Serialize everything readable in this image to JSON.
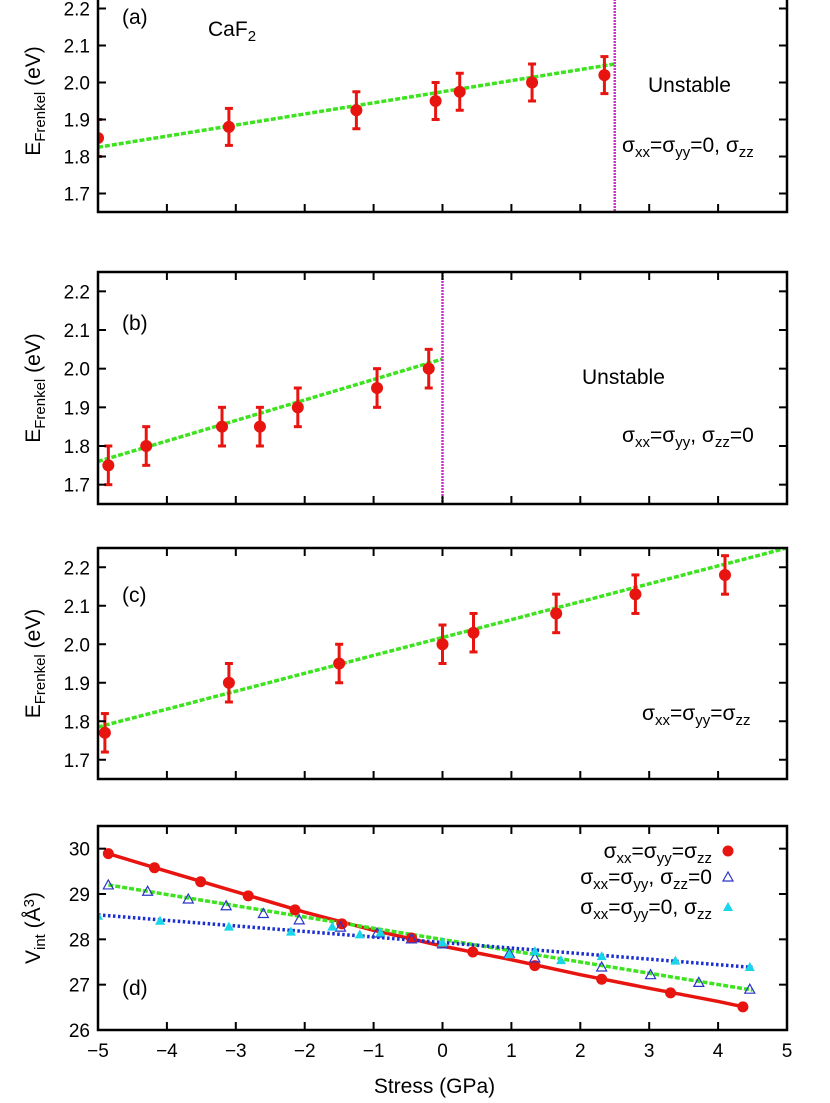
{
  "chart_data": [
    {
      "type": "scatter",
      "panel_label": "(a)",
      "material": {
        "base": "CaF",
        "sub": "2"
      },
      "ylabel": {
        "base": "E",
        "sub": "Frenkel",
        "tail": " (eV)"
      },
      "ylim": [
        1.65,
        2.25
      ],
      "yticks": [
        "1.7",
        "1.8",
        "1.9",
        "2.0",
        "2.1",
        "2.2"
      ],
      "xlim": [
        -5,
        5
      ],
      "grid": false,
      "points": [
        {
          "x": -5.0,
          "y": 1.85,
          "err": 0.05
        },
        {
          "x": -3.1,
          "y": 1.88,
          "err": 0.05
        },
        {
          "x": -1.25,
          "y": 1.925,
          "err": 0.05
        },
        {
          "x": -0.1,
          "y": 1.95,
          "err": 0.05
        },
        {
          "x": 0.25,
          "y": 1.975,
          "err": 0.05
        },
        {
          "x": 1.3,
          "y": 2.0,
          "err": 0.05
        },
        {
          "x": 2.35,
          "y": 2.02,
          "err": 0.05
        }
      ],
      "fit": {
        "x": [
          -5,
          2.5
        ],
        "y": [
          1.825,
          2.05
        ]
      },
      "vline_x": 2.5,
      "annotations": [
        {
          "type": "text",
          "text": "Unstable"
        },
        {
          "type": "sigma",
          "parts": [
            [
              "σ",
              "xx"
            ],
            [
              "=σ",
              "yy"
            ],
            [
              "=0, σ",
              "zz"
            ]
          ]
        }
      ],
      "colors": {
        "points": "#e8140f",
        "fit": "#3ce31e",
        "vline": "#cc33cc"
      }
    },
    {
      "type": "scatter",
      "panel_label": "(b)",
      "ylabel": {
        "base": "E",
        "sub": "Frenkel",
        "tail": " (eV)"
      },
      "ylim": [
        1.65,
        2.25
      ],
      "yticks": [
        "1.7",
        "1.8",
        "1.9",
        "2.0",
        "2.1",
        "2.2"
      ],
      "xlim": [
        -5,
        5
      ],
      "grid": false,
      "points": [
        {
          "x": -4.85,
          "y": 1.75,
          "err": 0.05
        },
        {
          "x": -4.3,
          "y": 1.8,
          "err": 0.05
        },
        {
          "x": -3.2,
          "y": 1.85,
          "err": 0.05
        },
        {
          "x": -2.65,
          "y": 1.85,
          "err": 0.05
        },
        {
          "x": -2.1,
          "y": 1.9,
          "err": 0.05
        },
        {
          "x": -0.95,
          "y": 1.95,
          "err": 0.05
        },
        {
          "x": -0.2,
          "y": 2.0,
          "err": 0.05
        }
      ],
      "fit": {
        "x": [
          -5,
          0
        ],
        "y": [
          1.76,
          2.025
        ]
      },
      "vline_x": 0,
      "annotations": [
        {
          "type": "text",
          "text": "Unstable"
        },
        {
          "type": "sigma",
          "parts": [
            [
              "σ",
              "xx"
            ],
            [
              "=σ",
              "yy"
            ],
            [
              ", σ",
              "zz"
            ],
            [
              "=0",
              ""
            ]
          ]
        }
      ],
      "colors": {
        "points": "#e8140f",
        "fit": "#3ce31e",
        "vline": "#cc33cc"
      }
    },
    {
      "type": "scatter",
      "panel_label": "(c)",
      "ylabel": {
        "base": "E",
        "sub": "Frenkel",
        "tail": " (eV)"
      },
      "ylim": [
        1.65,
        2.25
      ],
      "yticks": [
        "1.7",
        "1.8",
        "1.9",
        "2.0",
        "2.1",
        "2.2"
      ],
      "xlim": [
        -5,
        5
      ],
      "grid": false,
      "points": [
        {
          "x": -4.9,
          "y": 1.77,
          "err": 0.05
        },
        {
          "x": -3.1,
          "y": 1.9,
          "err": 0.05
        },
        {
          "x": -1.5,
          "y": 1.95,
          "err": 0.05
        },
        {
          "x": 0.0,
          "y": 2.0,
          "err": 0.05
        },
        {
          "x": 0.45,
          "y": 2.03,
          "err": 0.05
        },
        {
          "x": 1.65,
          "y": 2.08,
          "err": 0.05
        },
        {
          "x": 2.8,
          "y": 2.13,
          "err": 0.05
        },
        {
          "x": 4.1,
          "y": 2.18,
          "err": 0.05
        }
      ],
      "fit": {
        "x": [
          -5,
          5
        ],
        "y": [
          1.785,
          2.25
        ]
      },
      "annotations": [
        {
          "type": "sigma",
          "parts": [
            [
              "σ",
              "xx"
            ],
            [
              "=σ",
              "yy"
            ],
            [
              "=σ",
              "zz"
            ]
          ]
        }
      ],
      "colors": {
        "points": "#e8140f",
        "fit": "#3ce31e"
      }
    },
    {
      "type": "line",
      "panel_label": "(d)",
      "xlabel": "Stress (GPa)",
      "ylabel": {
        "base": "V",
        "sub": "int",
        "tail": " (Å",
        "sup": "3",
        "close": ")"
      },
      "ylim": [
        26,
        30.5
      ],
      "yticks": [
        "26",
        "27",
        "28",
        "29",
        "30"
      ],
      "xlim": [
        -5,
        5
      ],
      "xticks": [
        "−5",
        "−4",
        "−3",
        "−2",
        "−1",
        "0",
        "1",
        "2",
        "3",
        "4",
        "5"
      ],
      "grid": false,
      "legend_position": "top-right",
      "series": [
        {
          "name_parts": [
            [
              "σ",
              "xx"
            ],
            [
              "=σ",
              "yy"
            ],
            [
              "=σ",
              "zz"
            ]
          ],
          "marker": "filled-circle",
          "color": "#e8140f",
          "x": [
            -4.85,
            -4.18,
            -3.51,
            -2.82,
            -2.14,
            -1.46,
            -0.45,
            0.44,
            1.34,
            2.31,
            3.31,
            4.36
          ],
          "y": [
            29.89,
            29.58,
            29.27,
            28.96,
            28.65,
            28.34,
            28.03,
            27.72,
            27.42,
            27.12,
            26.82,
            26.51
          ],
          "fit_x": [
            -4.85,
            -4.0,
            -3.0,
            -2.0,
            -1.0,
            0.0,
            1.0,
            2.0,
            3.0,
            4.0,
            4.4
          ],
          "fit_y": [
            29.89,
            29.5,
            29.05,
            28.6,
            28.2,
            27.85,
            27.55,
            27.22,
            26.92,
            26.63,
            26.5
          ]
        },
        {
          "name_parts": [
            [
              "σ",
              "xx"
            ],
            [
              "=σ",
              "yy"
            ],
            [
              ", σ",
              "zz"
            ],
            [
              "=0",
              ""
            ]
          ],
          "marker": "open-triangle",
          "color": "#2a35c8",
          "x": [
            -4.85,
            -4.28,
            -3.69,
            -3.14,
            -2.6,
            -2.08,
            -1.48,
            -0.95,
            -0.45,
            0.0,
            0.97,
            1.34,
            2.31,
            3.02,
            3.72,
            4.46
          ],
          "y": [
            29.2,
            29.06,
            28.89,
            28.74,
            28.57,
            28.43,
            28.27,
            28.14,
            28.01,
            27.9,
            27.69,
            27.59,
            27.39,
            27.22,
            27.05,
            26.9
          ],
          "fit_x": [
            -4.85,
            4.5
          ],
          "fit_y": [
            29.2,
            26.88
          ]
        },
        {
          "name_parts": [
            [
              "σ",
              "xx"
            ],
            [
              "=σ",
              "yy"
            ],
            [
              "=0, σ",
              "zz"
            ]
          ],
          "marker": "filled-triangle",
          "color": "#19d5e8",
          "x": [
            -5.0,
            -4.1,
            -3.1,
            -2.2,
            -1.6,
            -1.2,
            -0.9,
            0.0,
            0.97,
            1.34,
            1.72,
            2.31,
            3.38,
            4.46
          ],
          "y": [
            28.52,
            28.41,
            28.28,
            28.17,
            28.28,
            28.11,
            28.15,
            27.93,
            27.67,
            27.74,
            27.54,
            27.63,
            27.53,
            27.39
          ],
          "fit_x": [
            -5,
            4.5
          ],
          "fit_y": [
            28.54,
            27.38
          ]
        }
      ],
      "colors": {
        "fit_sigma3": "#e8140f",
        "fit_sigma_uni": "#3ce31e",
        "fit_sigma_bi": "#1a2fd0"
      }
    }
  ]
}
